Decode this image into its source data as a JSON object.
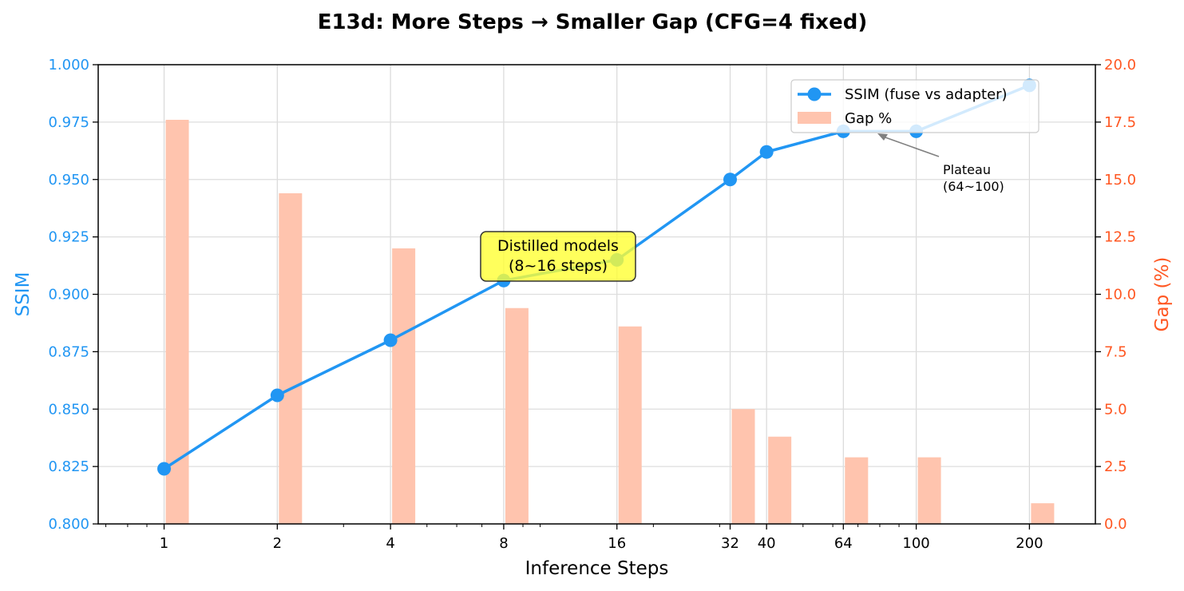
{
  "chart_data": {
    "type": "line",
    "title": "E13d: More Steps → Smaller Gap (CFG=4 fixed)",
    "xlabel": "Inference Steps",
    "ylabel_left": "SSIM",
    "ylabel_right": "Gap (%)",
    "x_scale": "log2",
    "x": [
      1,
      2,
      4,
      8,
      16,
      32,
      40,
      64,
      100,
      200
    ],
    "x_tick_labels": [
      "1",
      "2",
      "4",
      "8",
      "16",
      "32",
      "40",
      "64",
      "100",
      "200"
    ],
    "ylim_left": [
      0.8,
      1.0
    ],
    "y_ticks_left": [
      "0.800",
      "0.825",
      "0.850",
      "0.875",
      "0.900",
      "0.925",
      "0.950",
      "0.975",
      "1.000"
    ],
    "ylim_right": [
      0.0,
      20.0
    ],
    "y_ticks_right": [
      "0.0",
      "2.5",
      "5.0",
      "7.5",
      "10.0",
      "12.5",
      "15.0",
      "17.5",
      "20.0"
    ],
    "grid": true,
    "legend_position": "top-right",
    "series": [
      {
        "name": "SSIM (fuse vs adapter)",
        "kind": "line",
        "axis": "left",
        "color": "#2196f3",
        "values": [
          0.824,
          0.856,
          0.88,
          0.906,
          0.915,
          0.95,
          0.962,
          0.971,
          0.971,
          0.991
        ]
      },
      {
        "name": "Gap %",
        "kind": "bar",
        "axis": "right",
        "color": "#ffc4ae",
        "values": [
          17.6,
          14.4,
          12.0,
          9.4,
          8.6,
          5.0,
          3.8,
          2.9,
          2.9,
          0.9
        ]
      }
    ],
    "annotations": [
      {
        "text": "Distilled models\n(8~16 steps)",
        "style": "yellow-box",
        "color": "#ffff33"
      },
      {
        "text": "Plateau\n(64~100)",
        "style": "arrow",
        "color": "#808080"
      }
    ],
    "colors": {
      "left_axis": "#2196f3",
      "right_axis": "#ff5722",
      "bar": "#ffc4ae",
      "line": "#2196f3"
    }
  }
}
